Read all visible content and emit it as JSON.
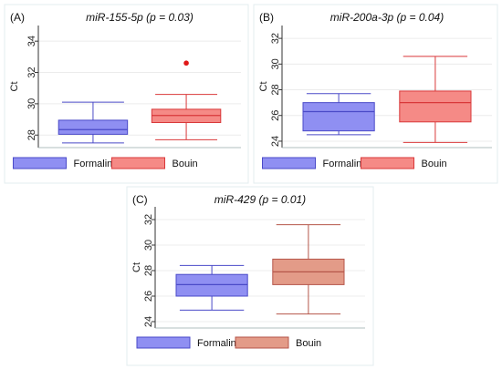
{
  "chart_data": [
    {
      "type": "box",
      "panel_label": "(A)",
      "title": "miR-155-5p (p = 0.03)",
      "ylabel": "Ct",
      "ylim": [
        27.2,
        35.0
      ],
      "yticks": [
        28,
        30,
        32,
        34
      ],
      "grid": true,
      "legend_position": "bottom",
      "series": [
        {
          "name": "Formalin",
          "color_fill": "#8f8ff2",
          "color_edge": "#4a4ac8",
          "min": 27.5,
          "q1": 28.05,
          "median": 28.35,
          "q3": 28.95,
          "max": 30.1,
          "outliers": []
        },
        {
          "name": "Bouin",
          "color_fill": "#f58a86",
          "color_edge": "#d9383a",
          "min": 27.7,
          "q1": 28.8,
          "median": 29.25,
          "q3": 29.65,
          "max": 30.6,
          "outliers": [
            32.6
          ]
        }
      ]
    },
    {
      "type": "box",
      "panel_label": "(B)",
      "title": "miR-200a-3p (p = 0.04)",
      "ylabel": "Ct",
      "ylim": [
        23.5,
        33.0
      ],
      "yticks": [
        24,
        26,
        28,
        30,
        32
      ],
      "grid": true,
      "legend_position": "bottom",
      "series": [
        {
          "name": "Formalin",
          "color_fill": "#8f8ff2",
          "color_edge": "#4a4ac8",
          "min": 24.5,
          "q1": 24.8,
          "median": 26.3,
          "q3": 27.0,
          "max": 27.7,
          "outliers": []
        },
        {
          "name": "Bouin",
          "color_fill": "#f58a86",
          "color_edge": "#d9383a",
          "min": 23.9,
          "q1": 25.5,
          "median": 27.0,
          "q3": 27.9,
          "max": 30.6,
          "outliers": []
        }
      ]
    },
    {
      "type": "box",
      "panel_label": "(C)",
      "title": "miR-429 (p = 0.01)",
      "ylabel": "Ct",
      "ylim": [
        23.5,
        33.0
      ],
      "yticks": [
        24,
        26,
        28,
        30,
        32
      ],
      "grid": true,
      "legend_position": "bottom",
      "series": [
        {
          "name": "Formalin",
          "color_fill": "#8f8ff2",
          "color_edge": "#4a4ac8",
          "min": 24.9,
          "q1": 26.0,
          "median": 26.9,
          "q3": 27.7,
          "max": 28.4,
          "outliers": []
        },
        {
          "name": "Bouin",
          "color_fill": "#e39b88",
          "color_edge": "#b5564a",
          "min": 24.6,
          "q1": 26.9,
          "median": 27.9,
          "q3": 28.9,
          "max": 31.6,
          "outliers": []
        }
      ]
    }
  ]
}
